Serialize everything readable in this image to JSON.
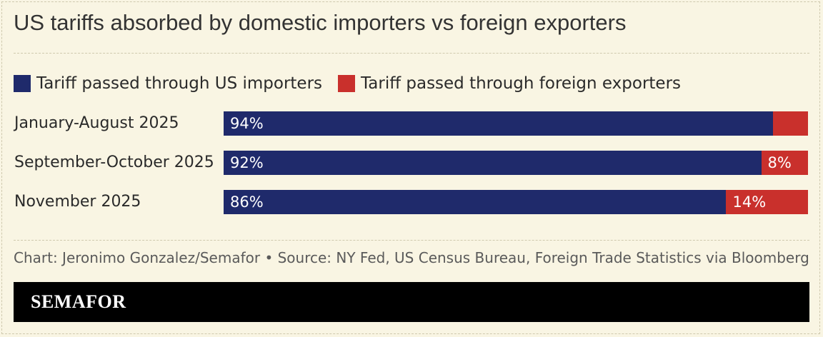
{
  "title": "US tariffs absorbed by domestic importers vs foreign exporters",
  "source": "Chart: Jeronimo Gonzalez/Semafor • Source: NY Fed, US Census Bureau, Foreign Trade Statistics via Bloomberg",
  "brand": "SEMAFOR",
  "colors": {
    "importers": "#1f2a6b",
    "exporters": "#c9302c",
    "background": "#f9f5e3"
  },
  "chart_data": {
    "type": "bar",
    "orientation": "horizontal",
    "stacked": true,
    "categories": [
      "January-August 2025",
      "September-October 2025",
      "November 2025"
    ],
    "series": [
      {
        "name": "Tariff passed through US importers",
        "values": [
          94,
          92,
          86
        ],
        "labels": [
          "94%",
          "92%",
          "86%"
        ]
      },
      {
        "name": "Tariff passed through foreign exporters",
        "values": [
          6,
          8,
          14
        ],
        "labels": [
          "",
          "8%",
          "14%"
        ]
      }
    ],
    "xlim": [
      0,
      100
    ],
    "legend": "top-left"
  }
}
